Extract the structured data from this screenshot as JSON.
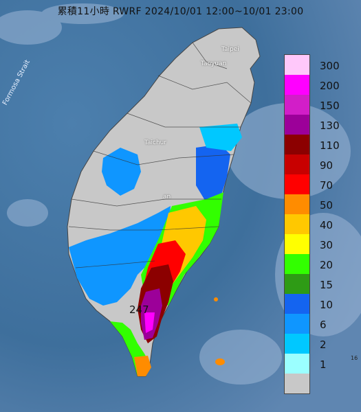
{
  "title": "累積11小時 RWRF 2024/10/01 12:00~10/01 23:00",
  "place_labels": {
    "taipei": "Taipei",
    "taoyuan": "Taoyuan",
    "taichung": "Taichur",
    "nantou": "an",
    "strait": "Formosa Strait"
  },
  "max_value_label": "247",
  "corner_label": "16",
  "legend": {
    "ticks": [
      "300",
      "200",
      "150",
      "130",
      "110",
      "90",
      "70",
      "50",
      "40",
      "30",
      "20",
      "15",
      "10",
      "6",
      "2",
      "1"
    ],
    "colors": [
      "#ffc8fa",
      "#ff00ff",
      "#d21ec8",
      "#9c0099",
      "#8c0000",
      "#c80000",
      "#ff0000",
      "#ff8c00",
      "#ffc800",
      "#ffff00",
      "#32ff00",
      "#2e9b15",
      "#1464f0",
      "#0f96ff",
      "#00c8ff",
      "#9bffff",
      "#c8c8c8"
    ]
  }
}
